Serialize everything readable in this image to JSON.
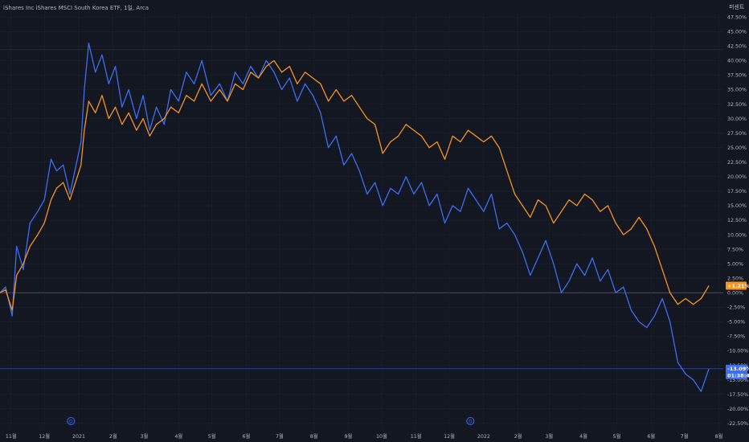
{
  "header": {
    "title": "iShares Inc iShares MSCI South Korea ETF, 1일, Arca",
    "scale_mode": "퍼센트"
  },
  "colors": {
    "background": "#131722",
    "grid": "#1e2230",
    "text": "#b2b5be",
    "series_blue": "#3d6ef1",
    "series_orange": "#f7931e",
    "zero_line": "#5d606b",
    "crosshair_line": "#3d6ef1"
  },
  "icons": {
    "event_marker": "dividend-d-icon"
  },
  "events": [
    {
      "label": "D",
      "x": "2020-12-25"
    },
    {
      "label": "D",
      "x": "2021-12-20"
    }
  ],
  "badges": {
    "orange": {
      "label": "+1.21%",
      "value": 1.21
    },
    "blue": {
      "label": "-13.09%",
      "sublabel": "01:38:42",
      "value": -13.09
    }
  },
  "chart_data": {
    "type": "line",
    "title": "iShares Inc iShares MSCI South Korea ETF, 1일, Arca",
    "xlabel": "",
    "ylabel": "",
    "x_ticks": [
      {
        "label": "11월",
        "date": "2020-11-01"
      },
      {
        "label": "12월",
        "date": "2020-12-01"
      },
      {
        "label": "2021",
        "date": "2021-01-01"
      },
      {
        "label": "2월",
        "date": "2021-02-01"
      },
      {
        "label": "3월",
        "date": "2021-03-01"
      },
      {
        "label": "4월",
        "date": "2021-04-01"
      },
      {
        "label": "5월",
        "date": "2021-05-01"
      },
      {
        "label": "6월",
        "date": "2021-06-01"
      },
      {
        "label": "7월",
        "date": "2021-07-01"
      },
      {
        "label": "8월",
        "date": "2021-08-01"
      },
      {
        "label": "9월",
        "date": "2021-09-01"
      },
      {
        "label": "10월",
        "date": "2021-10-01"
      },
      {
        "label": "11월",
        "date": "2021-11-01"
      },
      {
        "label": "12월",
        "date": "2021-12-01"
      },
      {
        "label": "2022",
        "date": "2022-01-01"
      },
      {
        "label": "2월",
        "date": "2022-02-01"
      },
      {
        "label": "3월",
        "date": "2022-03-01"
      },
      {
        "label": "4월",
        "date": "2022-04-01"
      },
      {
        "label": "5월",
        "date": "2022-05-01"
      },
      {
        "label": "6월",
        "date": "2022-06-01"
      },
      {
        "label": "7월",
        "date": "2022-07-01"
      },
      {
        "label": "8월",
        "date": "2022-08-01"
      }
    ],
    "y_ticks": [
      "47.50%",
      "45.00%",
      "42.50%",
      "40.00%",
      "37.50%",
      "35.00%",
      "32.50%",
      "30.00%",
      "27.50%",
      "25.00%",
      "22.50%",
      "20.00%",
      "17.50%",
      "15.00%",
      "12.50%",
      "10.00%",
      "7.50%",
      "5.00%",
      "2.50%",
      "0.00%",
      "-2.50%",
      "-5.00%",
      "-7.50%",
      "-10.00%",
      "-12.50%",
      "-15.00%",
      "-17.50%",
      "-20.00%",
      "-22.50%"
    ],
    "ylim": [
      -23.5,
      48.5
    ],
    "xlim": [
      "2020-10-22",
      "2022-08-05"
    ],
    "grid": true,
    "series": [
      {
        "color": "#3d6ef1",
        "x": [
          "2020-10-22",
          "2020-10-27",
          "2020-11-02",
          "2020-11-06",
          "2020-11-12",
          "2020-11-18",
          "2020-11-25",
          "2020-12-01",
          "2020-12-07",
          "2020-12-12",
          "2020-12-18",
          "2020-12-24",
          "2021-01-03",
          "2021-01-06",
          "2021-01-10",
          "2021-01-16",
          "2021-01-22",
          "2021-01-28",
          "2021-02-03",
          "2021-02-09",
          "2021-02-15",
          "2021-02-22",
          "2021-02-28",
          "2021-03-06",
          "2021-03-12",
          "2021-03-19",
          "2021-03-25",
          "2021-04-01",
          "2021-04-08",
          "2021-04-15",
          "2021-04-22",
          "2021-04-30",
          "2021-05-08",
          "2021-05-15",
          "2021-05-22",
          "2021-05-29",
          "2021-06-05",
          "2021-06-12",
          "2021-06-19",
          "2021-06-26",
          "2021-07-03",
          "2021-07-10",
          "2021-07-17",
          "2021-07-24",
          "2021-07-31",
          "2021-08-07",
          "2021-08-14",
          "2021-08-21",
          "2021-08-28",
          "2021-09-04",
          "2021-09-11",
          "2021-09-18",
          "2021-09-25",
          "2021-10-02",
          "2021-10-09",
          "2021-10-16",
          "2021-10-23",
          "2021-10-30",
          "2021-11-06",
          "2021-11-13",
          "2021-11-20",
          "2021-11-27",
          "2021-12-04",
          "2021-12-11",
          "2021-12-18",
          "2021-12-25",
          "2022-01-01",
          "2022-01-08",
          "2022-01-15",
          "2022-01-22",
          "2022-01-29",
          "2022-02-05",
          "2022-02-12",
          "2022-02-19",
          "2022-02-26",
          "2022-03-05",
          "2022-03-12",
          "2022-03-19",
          "2022-03-26",
          "2022-04-02",
          "2022-04-09",
          "2022-04-16",
          "2022-04-23",
          "2022-04-30",
          "2022-05-07",
          "2022-05-14",
          "2022-05-21",
          "2022-05-28",
          "2022-06-04",
          "2022-06-11",
          "2022-06-18",
          "2022-06-25",
          "2022-07-02",
          "2022-07-09",
          "2022-07-16",
          "2022-07-23"
        ],
        "y": [
          0.0,
          1.0,
          -4.0,
          8.0,
          4.0,
          12.0,
          14.0,
          16.0,
          23.0,
          21.0,
          22.0,
          17.0,
          26.0,
          35.0,
          43.0,
          38.0,
          41.0,
          36.0,
          39.0,
          32.0,
          35.0,
          30.0,
          34.0,
          28.0,
          32.0,
          29.0,
          35.0,
          33.0,
          38.0,
          36.0,
          40.0,
          34.0,
          36.0,
          33.0,
          38.0,
          36.0,
          39.0,
          37.0,
          40.0,
          38.0,
          35.0,
          37.0,
          33.0,
          36.0,
          34.0,
          31.0,
          25.0,
          27.0,
          22.0,
          24.0,
          21.0,
          17.0,
          19.0,
          15.0,
          18.0,
          17.0,
          20.0,
          17.0,
          19.0,
          15.0,
          17.0,
          12.0,
          15.0,
          14.0,
          18.0,
          16.0,
          14.0,
          17.0,
          11.0,
          12.0,
          10.0,
          7.0,
          3.0,
          6.0,
          9.0,
          5.0,
          0.0,
          2.0,
          5.0,
          3.0,
          6.0,
          2.0,
          4.0,
          0.0,
          1.0,
          -3.0,
          -5.0,
          -6.0,
          -4.0,
          -1.0,
          -5.0,
          -12.0,
          -14.0,
          -15.0,
          -17.0,
          -13.1
        ]
      },
      {
        "color": "#f7931e",
        "x": [
          "2020-10-22",
          "2020-10-27",
          "2020-11-02",
          "2020-11-06",
          "2020-11-12",
          "2020-11-18",
          "2020-11-25",
          "2020-12-01",
          "2020-12-07",
          "2020-12-12",
          "2020-12-18",
          "2020-12-24",
          "2021-01-03",
          "2021-01-06",
          "2021-01-10",
          "2021-01-16",
          "2021-01-22",
          "2021-01-28",
          "2021-02-03",
          "2021-02-09",
          "2021-02-15",
          "2021-02-22",
          "2021-02-28",
          "2021-03-06",
          "2021-03-12",
          "2021-03-19",
          "2021-03-25",
          "2021-04-01",
          "2021-04-08",
          "2021-04-15",
          "2021-04-22",
          "2021-04-30",
          "2021-05-08",
          "2021-05-15",
          "2021-05-22",
          "2021-05-29",
          "2021-06-05",
          "2021-06-12",
          "2021-06-19",
          "2021-06-26",
          "2021-07-03",
          "2021-07-10",
          "2021-07-17",
          "2021-07-24",
          "2021-07-31",
          "2021-08-07",
          "2021-08-14",
          "2021-08-21",
          "2021-08-28",
          "2021-09-04",
          "2021-09-11",
          "2021-09-18",
          "2021-09-25",
          "2021-10-02",
          "2021-10-09",
          "2021-10-16",
          "2021-10-23",
          "2021-10-30",
          "2021-11-06",
          "2021-11-13",
          "2021-11-20",
          "2021-11-27",
          "2021-12-04",
          "2021-12-11",
          "2021-12-18",
          "2021-12-25",
          "2022-01-01",
          "2022-01-08",
          "2022-01-15",
          "2022-01-22",
          "2022-01-29",
          "2022-02-05",
          "2022-02-12",
          "2022-02-19",
          "2022-02-26",
          "2022-03-05",
          "2022-03-12",
          "2022-03-19",
          "2022-03-26",
          "2022-04-02",
          "2022-04-09",
          "2022-04-16",
          "2022-04-23",
          "2022-04-30",
          "2022-05-07",
          "2022-05-14",
          "2022-05-21",
          "2022-05-28",
          "2022-06-04",
          "2022-06-11",
          "2022-06-18",
          "2022-06-25",
          "2022-07-02",
          "2022-07-09",
          "2022-07-16",
          "2022-07-23"
        ],
        "y": [
          0.0,
          0.5,
          -3.0,
          3.0,
          5.0,
          8.0,
          10.0,
          12.0,
          16.0,
          18.0,
          19.0,
          16.0,
          22.0,
          28.0,
          33.0,
          31.0,
          34.0,
          30.0,
          32.0,
          29.0,
          31.0,
          28.0,
          30.0,
          27.0,
          29.0,
          30.0,
          32.0,
          31.0,
          34.0,
          33.0,
          36.0,
          33.0,
          35.0,
          33.0,
          36.0,
          35.0,
          38.0,
          37.0,
          39.0,
          40.0,
          38.0,
          39.0,
          36.0,
          38.0,
          37.0,
          36.0,
          33.0,
          35.0,
          33.0,
          34.0,
          32.0,
          30.0,
          29.0,
          24.0,
          26.0,
          27.0,
          29.0,
          28.0,
          27.0,
          25.0,
          26.0,
          23.0,
          27.0,
          26.0,
          28.0,
          27.0,
          26.0,
          27.0,
          25.0,
          21.0,
          17.0,
          15.0,
          13.0,
          16.0,
          15.0,
          12.0,
          14.0,
          16.0,
          15.0,
          17.0,
          16.0,
          14.0,
          15.0,
          12.0,
          10.0,
          11.0,
          13.0,
          11.0,
          8.0,
          4.0,
          0.0,
          -2.0,
          -1.0,
          -2.0,
          -1.0,
          1.21
        ]
      }
    ]
  }
}
